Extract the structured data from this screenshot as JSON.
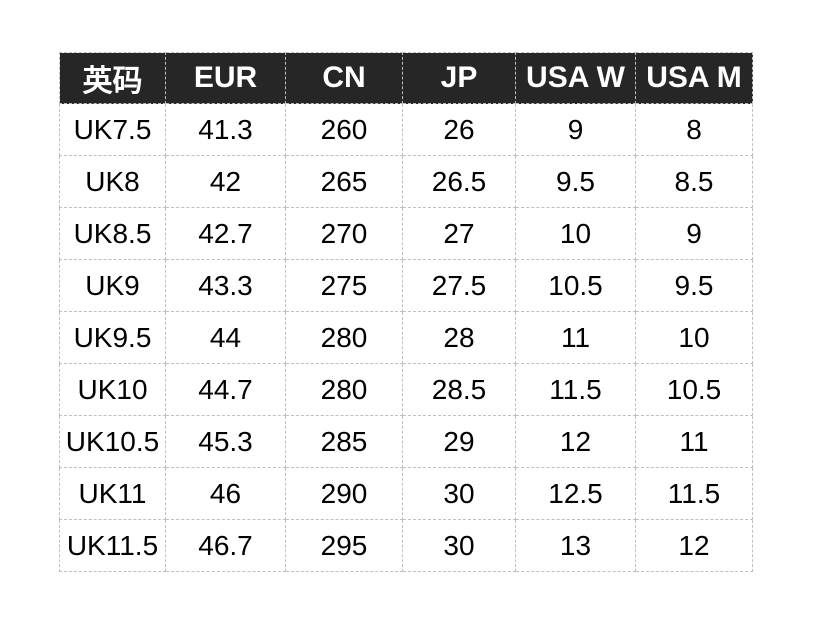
{
  "colors": {
    "page_bg": "#ffffff",
    "header_bg": "#262626",
    "header_text": "#ffffff",
    "cell_text": "#000000",
    "border": "#bfbfbf"
  },
  "chart_data": {
    "type": "table",
    "title": "",
    "columns": [
      "英码",
      "EUR",
      "CN",
      "JP",
      "USA W",
      "USA M"
    ],
    "rows": [
      [
        "UK7.5",
        "41.3",
        "260",
        "26",
        "9",
        "8"
      ],
      [
        "UK8",
        "42",
        "265",
        "26.5",
        "9.5",
        "8.5"
      ],
      [
        "UK8.5",
        "42.7",
        "270",
        "27",
        "10",
        "9"
      ],
      [
        "UK9",
        "43.3",
        "275",
        "27.5",
        "10.5",
        "9.5"
      ],
      [
        "UK9.5",
        "44",
        "280",
        "28",
        "11",
        "10"
      ],
      [
        "UK10",
        "44.7",
        "280",
        "28.5",
        "11.5",
        "10.5"
      ],
      [
        "UK10.5",
        "45.3",
        "285",
        "29",
        "12",
        "11"
      ],
      [
        "UK11",
        "46",
        "290",
        "30",
        "12.5",
        "11.5"
      ],
      [
        "UK11.5",
        "46.7",
        "295",
        "30",
        "13",
        "12"
      ]
    ]
  }
}
